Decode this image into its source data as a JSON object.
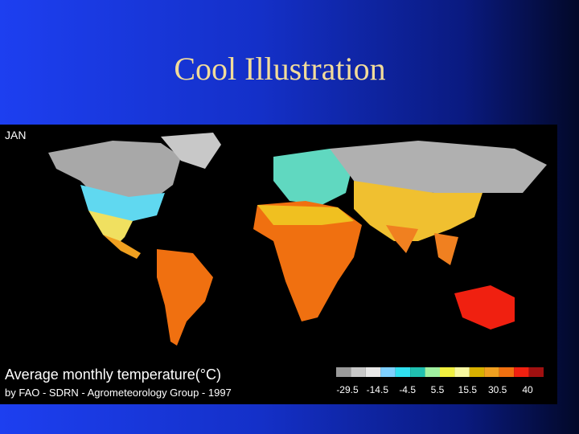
{
  "title": "Cool Illustration",
  "map": {
    "month": "JAN",
    "caption": "Average monthly temperature(°C)",
    "credit": "by FAO - SDRN - Agrometeorology Group - 1997",
    "legend": {
      "colors": [
        "#9a9a9a",
        "#c8c8c8",
        "#e8e8e8",
        "#7fd0ff",
        "#30e0f0",
        "#20c0b0",
        "#a0f0a0",
        "#f0f040",
        "#f8f8a0",
        "#d8b000",
        "#f0a020",
        "#f07010",
        "#f02010",
        "#a01010"
      ],
      "labels": [
        "-29.5",
        "-14.5",
        "-4.5",
        "5.5",
        "15.5",
        "30.5",
        "40"
      ]
    }
  }
}
